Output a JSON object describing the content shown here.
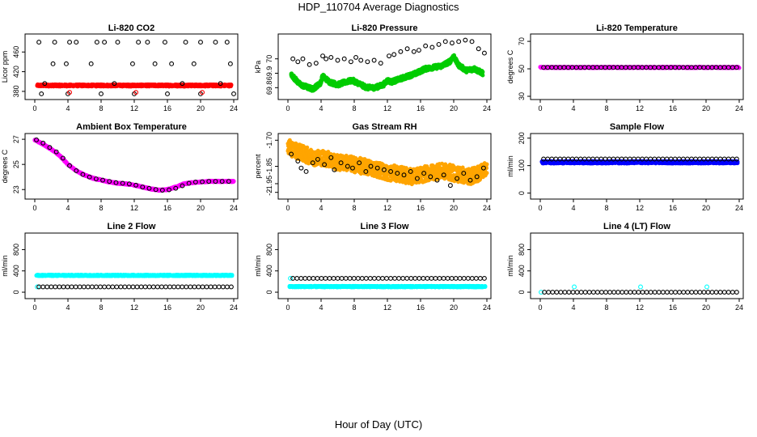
{
  "page": {
    "title": "HDP_110704  Average Diagnostics",
    "xlabel": "Hour of Day (UTC)"
  },
  "chart_data": [
    {
      "type": "scatter",
      "title": "Li-820 CO2",
      "ylabel": "Licor ppm",
      "xlim": [
        0,
        24
      ],
      "ylim": [
        370,
        490
      ],
      "xticks": [
        0,
        4,
        8,
        12,
        16,
        20,
        24
      ],
      "yticks": [
        380,
        420,
        460
      ],
      "series": [
        {
          "color": "#ff0000",
          "marker": "dense",
          "x": [
            0.3,
            23.7
          ],
          "y": [
            392,
            392
          ],
          "jitter": 2
        },
        {
          "color": "#000000",
          "marker": "circle",
          "x": [
            0.5,
            2.2,
            2.4,
            4.2,
            5.0,
            6.8,
            7.5,
            8.4,
            10.0,
            11.8,
            12.5,
            13.6,
            15.7,
            16.5,
            18.2,
            19.2,
            20.0,
            21.8,
            23.2,
            23.6,
            1.2,
            3.8,
            9.6,
            14.5,
            17.8,
            22.4,
            0.8,
            4.0,
            8.0,
            12.0,
            16.0,
            20.0,
            24.0
          ],
          "y": [
            480,
            436,
            480,
            480,
            480,
            436,
            480,
            480,
            480,
            436,
            480,
            480,
            480,
            436,
            480,
            436,
            480,
            480,
            480,
            436,
            396,
            436,
            396,
            436,
            396,
            396,
            375,
            375,
            375,
            375,
            375,
            375,
            375
          ]
        },
        {
          "color": "#ff0000",
          "marker": "circle",
          "x": [
            4.2,
            12.2,
            20.2
          ],
          "y": [
            378,
            378,
            378
          ]
        }
      ]
    },
    {
      "type": "scatter",
      "title": "Li-820 Pressure",
      "ylabel": "kPa",
      "xlim": [
        0,
        24
      ],
      "ylim": [
        69.74,
        70.15
      ],
      "xticks": [
        0,
        4,
        8,
        12,
        16,
        20,
        24
      ],
      "yticks": [
        69.8,
        69.9,
        70.0
      ],
      "series": [
        {
          "color": "#00cc00",
          "marker": "dense",
          "x": [
            0.4,
            1.5,
            3.0,
            3.9,
            4.2,
            5.0,
            6.0,
            7.0,
            7.8,
            8.5,
            9.5,
            10.5,
            11.5,
            12.0,
            12.5,
            13.5,
            14.5,
            15.5,
            16.5,
            17.5,
            18.5,
            19.5,
            20.0,
            20.5,
            21.5,
            22.5,
            23.5
          ],
          "y": [
            69.89,
            69.82,
            69.79,
            69.83,
            69.88,
            69.84,
            69.82,
            69.84,
            69.85,
            69.83,
            69.8,
            69.8,
            69.82,
            69.85,
            69.84,
            69.86,
            69.88,
            69.9,
            69.93,
            69.94,
            69.95,
            69.98,
            70.02,
            69.96,
            69.92,
            69.93,
            69.9
          ],
          "jitter": 0.015
        },
        {
          "color": "#000000",
          "marker": "circle",
          "x": [
            0.6,
            1.2,
            1.8,
            2.6,
            3.4,
            4.2,
            4.6,
            5.2,
            6.0,
            6.8,
            7.6,
            8.2,
            8.8,
            9.6,
            10.4,
            11.2,
            12.2,
            12.8,
            13.6,
            14.4,
            15.2,
            15.8,
            16.6,
            17.4,
            18.2,
            19.0,
            19.8,
            20.6,
            21.4,
            22.2,
            23.0,
            23.7
          ],
          "y": [
            70.0,
            69.98,
            70.0,
            69.96,
            69.97,
            70.02,
            70.0,
            70.01,
            69.99,
            70.0,
            69.98,
            70.01,
            69.99,
            69.98,
            69.99,
            69.97,
            70.02,
            70.03,
            70.05,
            70.07,
            70.05,
            70.06,
            70.09,
            70.08,
            70.1,
            70.12,
            70.11,
            70.12,
            70.13,
            70.12,
            70.07,
            70.04
          ]
        }
      ]
    },
    {
      "type": "scatter",
      "title": "Li-820 Temperature",
      "ylabel": "degrees C",
      "xlim": [
        0,
        24
      ],
      "ylim": [
        30,
        73
      ],
      "xticks": [
        0,
        4,
        8,
        12,
        16,
        20,
        24
      ],
      "yticks": [
        30,
        50,
        70
      ],
      "series": [
        {
          "color": "#ff00ff",
          "marker": "dense",
          "x": [
            0,
            24
          ],
          "y": [
            51,
            51
          ],
          "jitter": 0.4
        },
        {
          "color": "#000000",
          "marker": "circle",
          "x": [
            0.4,
            23.7
          ],
          "y": [
            51,
            51
          ],
          "n": 48
        }
      ]
    },
    {
      "type": "scatter",
      "title": "Ambient Box Temperature",
      "ylabel": "degrees C",
      "xlim": [
        0,
        24
      ],
      "ylim": [
        22.5,
        27.2
      ],
      "xticks": [
        0,
        4,
        8,
        12,
        16,
        20,
        24
      ],
      "yticks": [
        23,
        25,
        27
      ],
      "series": [
        {
          "color": "#ff00ff",
          "marker": "dense",
          "x": [
            0,
            1,
            2,
            3,
            4,
            5,
            6,
            7,
            8,
            9,
            10,
            11,
            12,
            13,
            14,
            15,
            16,
            17,
            18,
            19,
            20,
            21,
            22,
            23,
            24
          ],
          "y": [
            26.95,
            26.6,
            26.2,
            25.7,
            25.0,
            24.5,
            24.15,
            23.9,
            23.75,
            23.6,
            23.5,
            23.45,
            23.35,
            23.2,
            23.05,
            22.95,
            23.0,
            23.2,
            23.45,
            23.55,
            23.6,
            23.65,
            23.65,
            23.65,
            23.65
          ],
          "jitter": 0.05
        },
        {
          "color": "#000000",
          "marker": "circle",
          "x": [
            0.2,
            1.0,
            1.8,
            2.6,
            3.4,
            4.2,
            5.0,
            5.8,
            6.6,
            7.4,
            8.2,
            9.0,
            9.8,
            10.6,
            11.4,
            12.2,
            13.0,
            13.8,
            14.6,
            15.4,
            16.2,
            17.0,
            17.8,
            18.6,
            19.4,
            20.2,
            21.0,
            21.8,
            22.6,
            23.4
          ],
          "y": [
            26.95,
            26.7,
            26.35,
            26.0,
            25.5,
            24.9,
            24.5,
            24.2,
            24.0,
            23.85,
            23.75,
            23.65,
            23.55,
            23.5,
            23.45,
            23.35,
            23.2,
            23.1,
            23.0,
            22.95,
            22.98,
            23.1,
            23.3,
            23.5,
            23.6,
            23.62,
            23.65,
            23.65,
            23.65,
            23.65
          ]
        }
      ]
    },
    {
      "type": "scatter",
      "title": "Gas Stream RH",
      "ylabel": "percent",
      "xlim": [
        0,
        24
      ],
      "ylim": [
        -2.02,
        -1.68
      ],
      "xticks": [
        0,
        4,
        8,
        12,
        16,
        20,
        24
      ],
      "yticks": [
        -1.7,
        -1.85,
        -1.95,
        -2.0
      ],
      "series": [
        {
          "color": "#ffa500",
          "marker": "dense",
          "x": [
            0,
            1,
            2,
            3,
            4,
            5,
            6,
            7,
            8,
            9,
            10,
            11,
            12,
            13,
            14,
            15,
            16,
            17,
            18,
            19,
            20,
            21,
            22,
            23,
            24
          ],
          "y": [
            -1.74,
            -1.76,
            -1.78,
            -1.8,
            -1.8,
            -1.81,
            -1.83,
            -1.83,
            -1.84,
            -1.85,
            -1.86,
            -1.87,
            -1.89,
            -1.89,
            -1.9,
            -1.91,
            -1.9,
            -1.89,
            -1.88,
            -1.88,
            -1.89,
            -1.9,
            -1.91,
            -1.89,
            -1.86
          ],
          "jitter": 0.045
        },
        {
          "color": "#000000",
          "marker": "circle",
          "x": [
            0.4,
            1.2,
            1.6,
            2.2,
            3.0,
            3.6,
            4.4,
            5.2,
            5.6,
            6.4,
            7.2,
            7.8,
            8.6,
            9.4,
            10.0,
            10.8,
            11.6,
            12.4,
            13.2,
            14.0,
            14.8,
            15.6,
            16.4,
            17.2,
            18.0,
            18.8,
            19.6,
            20.4,
            21.2,
            22.0,
            22.8,
            23.6
          ],
          "y": [
            -1.78,
            -1.82,
            -1.86,
            -1.88,
            -1.83,
            -1.81,
            -1.84,
            -1.8,
            -1.87,
            -1.83,
            -1.85,
            -1.86,
            -1.83,
            -1.88,
            -1.85,
            -1.86,
            -1.87,
            -1.88,
            -1.89,
            -1.9,
            -1.88,
            -1.92,
            -1.89,
            -1.91,
            -1.93,
            -1.9,
            -1.96,
            -1.92,
            -1.89,
            -1.93,
            -1.91,
            -1.86
          ]
        }
      ]
    },
    {
      "type": "scatter",
      "title": "Sample Flow",
      "ylabel": "ml/min",
      "xlim": [
        0,
        24
      ],
      "ylim": [
        -10,
        205
      ],
      "xticks": [
        0,
        4,
        8,
        12,
        16,
        20,
        24
      ],
      "yticks": [
        0,
        100,
        200
      ],
      "series": [
        {
          "color": "#0000ff",
          "marker": "dense",
          "x": [
            0.2,
            23.8
          ],
          "y": [
            112,
            112
          ],
          "jitter": 4
        },
        {
          "color": "#000000",
          "marker": "circle",
          "x": [
            0.4,
            23.7
          ],
          "y": [
            124,
            124
          ],
          "n": 48
        }
      ]
    },
    {
      "type": "scatter",
      "title": "Line 2 Flow",
      "ylabel": "ml/min",
      "xlim": [
        0,
        24
      ],
      "ylim": [
        -60,
        1050
      ],
      "xticks": [
        0,
        4,
        8,
        12,
        16,
        20,
        24
      ],
      "yticks": [
        0,
        400,
        800
      ],
      "series": [
        {
          "color": "#00ffff",
          "marker": "dense",
          "x": [
            0.2,
            23.8
          ],
          "y": [
            315,
            315
          ],
          "jitter": 12
        },
        {
          "color": "#00ffff",
          "marker": "circle",
          "x": [
            0.3
          ],
          "y": [
            100
          ]
        },
        {
          "color": "#000000",
          "marker": "circle",
          "x": [
            0.5,
            23.7
          ],
          "y": [
            100,
            100
          ],
          "n": 48
        }
      ]
    },
    {
      "type": "scatter",
      "title": "Line 3 Flow",
      "ylabel": "ml/min",
      "xlim": [
        0,
        24
      ],
      "ylim": [
        -60,
        1050
      ],
      "xticks": [
        0,
        4,
        8,
        12,
        16,
        20,
        24
      ],
      "yticks": [
        0,
        400,
        800
      ],
      "series": [
        {
          "color": "#00ffff",
          "marker": "dense",
          "x": [
            0.2,
            23.8
          ],
          "y": [
            105,
            105
          ],
          "jitter": 12
        },
        {
          "color": "#00ffff",
          "marker": "circle",
          "x": [
            0.3
          ],
          "y": [
            260
          ]
        },
        {
          "color": "#000000",
          "marker": "circle",
          "x": [
            0.6,
            23.7
          ],
          "y": [
            260,
            260
          ],
          "n": 48
        }
      ]
    },
    {
      "type": "scatter",
      "title": "Line 4 (LT) Flow",
      "ylabel": "ml/min",
      "xlim": [
        0,
        24
      ],
      "ylim": [
        -60,
        1050
      ],
      "xticks": [
        0,
        4,
        8,
        12,
        16,
        20,
        24
      ],
      "yticks": [
        0,
        400,
        800
      ],
      "series": [
        {
          "color": "#00ffff",
          "marker": "circle",
          "x": [
            0.1,
            4.1,
            12.1,
            20.1
          ],
          "y": [
            0,
            100,
            100,
            100
          ]
        },
        {
          "color": "#000000",
          "marker": "circle",
          "x": [
            0.5,
            23.7
          ],
          "y": [
            0,
            0
          ],
          "n": 48
        }
      ]
    }
  ]
}
